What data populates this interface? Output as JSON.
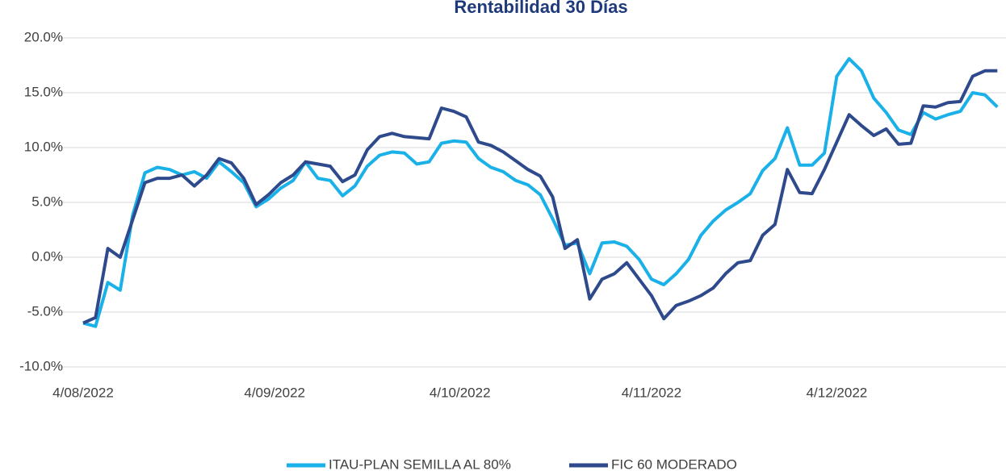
{
  "chart_data": {
    "type": "line",
    "title": "Rentabilidad 30 Días",
    "x": [
      "2022-08-04",
      "2022-08-06",
      "2022-08-08",
      "2022-08-10",
      "2022-08-12",
      "2022-08-14",
      "2022-08-16",
      "2022-08-18",
      "2022-08-20",
      "2022-08-22",
      "2022-08-24",
      "2022-08-26",
      "2022-08-28",
      "2022-08-30",
      "2022-09-01",
      "2022-09-03",
      "2022-09-05",
      "2022-09-07",
      "2022-09-09",
      "2022-09-11",
      "2022-09-13",
      "2022-09-15",
      "2022-09-17",
      "2022-09-19",
      "2022-09-21",
      "2022-09-23",
      "2022-09-25",
      "2022-09-27",
      "2022-09-29",
      "2022-10-01",
      "2022-10-03",
      "2022-10-05",
      "2022-10-07",
      "2022-10-09",
      "2022-10-11",
      "2022-10-13",
      "2022-10-15",
      "2022-10-17",
      "2022-10-19",
      "2022-10-21",
      "2022-10-23",
      "2022-10-25",
      "2022-10-27",
      "2022-10-29",
      "2022-10-31",
      "2022-11-02",
      "2022-11-04",
      "2022-11-06",
      "2022-11-08",
      "2022-11-10",
      "2022-11-12",
      "2022-11-14",
      "2022-11-16",
      "2022-11-18",
      "2022-11-20",
      "2022-11-22",
      "2022-11-24",
      "2022-11-26",
      "2022-11-28",
      "2022-11-30",
      "2022-12-02",
      "2022-12-04",
      "2022-12-06",
      "2022-12-08",
      "2022-12-10",
      "2022-12-12",
      "2022-12-14",
      "2022-12-16",
      "2022-12-18",
      "2022-12-20",
      "2022-12-22",
      "2022-12-24",
      "2022-12-26",
      "2022-12-28",
      "2022-12-30"
    ],
    "series": [
      {
        "name": "ITAU-PLAN SEMILLA AL 80%",
        "color": "#1ab0e8",
        "values": [
          -6.0,
          -6.3,
          -2.3,
          -3.0,
          3.8,
          7.7,
          8.2,
          8.0,
          7.5,
          7.8,
          7.2,
          8.7,
          7.8,
          6.8,
          4.6,
          5.3,
          6.3,
          7.0,
          8.7,
          7.2,
          7.0,
          5.6,
          6.5,
          8.3,
          9.3,
          9.6,
          9.5,
          8.5,
          8.7,
          10.4,
          10.6,
          10.5,
          9.0,
          8.2,
          7.8,
          7.0,
          6.6,
          5.7,
          3.5,
          1.1,
          1.3,
          -1.5,
          1.3,
          1.4,
          1.0,
          -0.2,
          -2.0,
          -2.5,
          -1.5,
          -0.2,
          2.0,
          3.3,
          4.3,
          5.0,
          5.8,
          7.9,
          9.0,
          11.8,
          8.4,
          8.4,
          9.5,
          16.5,
          18.1,
          17.0,
          14.5,
          13.2,
          11.6,
          11.2,
          13.2,
          12.6,
          13.0,
          13.3,
          15.0,
          14.8,
          13.7
        ]
      },
      {
        "name": "FIC 60 MODERADO",
        "color": "#2e4a8c",
        "values": [
          -6.0,
          -5.5,
          0.8,
          0.0,
          3.4,
          6.8,
          7.2,
          7.2,
          7.5,
          6.5,
          7.5,
          9.0,
          8.6,
          7.2,
          4.8,
          5.7,
          6.8,
          7.5,
          8.7,
          8.5,
          8.3,
          6.9,
          7.5,
          9.8,
          11.0,
          11.3,
          11.0,
          10.9,
          10.8,
          13.6,
          13.3,
          12.8,
          10.5,
          10.2,
          9.6,
          8.8,
          8.0,
          7.4,
          5.5,
          0.8,
          1.6,
          -3.8,
          -2.0,
          -1.5,
          -0.5,
          -2.0,
          -3.5,
          -5.6,
          -4.4,
          -4.0,
          -3.5,
          -2.8,
          -1.5,
          -0.5,
          -0.3,
          2.0,
          3.0,
          8.0,
          5.9,
          5.8,
          8.0,
          10.5,
          13.0,
          12.0,
          11.1,
          11.7,
          10.3,
          10.4,
          13.8,
          13.7,
          14.1,
          14.2,
          16.5,
          17.0,
          17.0
        ]
      }
    ],
    "xlim": [
      "2022-08-04",
      "2022-12-31"
    ],
    "xticks": [
      {
        "value": "2022-08-04",
        "label": "4/08/2022"
      },
      {
        "value": "2022-09-04",
        "label": "4/09/2022"
      },
      {
        "value": "2022-10-04",
        "label": "4/10/2022"
      },
      {
        "value": "2022-11-04",
        "label": "4/11/2022"
      },
      {
        "value": "2022-12-04",
        "label": "4/12/2022"
      }
    ],
    "ylim": [
      -10,
      20
    ],
    "yticks": [
      {
        "value": -10,
        "label": "-10.0%"
      },
      {
        "value": -5,
        "label": "-5.0%"
      },
      {
        "value": 0,
        "label": "0.0%"
      },
      {
        "value": 5,
        "label": "5.0%"
      },
      {
        "value": 10,
        "label": "10.0%"
      },
      {
        "value": 15,
        "label": "15.0%"
      },
      {
        "value": 20,
        "label": "20.0%"
      }
    ],
    "grid": true,
    "legend": "bottom"
  }
}
